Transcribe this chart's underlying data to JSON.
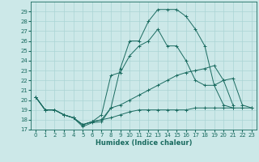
{
  "xlabel": "Humidex (Indice chaleur)",
  "bg_color": "#cce8e8",
  "grid_color": "#aad4d4",
  "line_color": "#1a6b60",
  "xlim": [
    -0.5,
    23.5
  ],
  "ylim": [
    17,
    30
  ],
  "xticks": [
    0,
    1,
    2,
    3,
    4,
    5,
    6,
    7,
    8,
    9,
    10,
    11,
    12,
    13,
    14,
    15,
    16,
    17,
    18,
    19,
    20,
    21,
    22,
    23
  ],
  "yticks": [
    17,
    18,
    19,
    20,
    21,
    22,
    23,
    24,
    25,
    26,
    27,
    28,
    29
  ],
  "lines": [
    {
      "x": [
        0,
        1,
        2,
        3,
        4,
        5,
        6,
        7,
        8,
        9,
        10,
        11,
        12,
        13,
        14,
        15,
        16,
        17,
        18,
        19,
        20,
        21
      ],
      "y": [
        20.3,
        19.0,
        19.0,
        18.5,
        18.2,
        17.3,
        17.7,
        17.8,
        19.2,
        23.2,
        26.0,
        26.0,
        28.0,
        29.2,
        29.2,
        29.2,
        28.5,
        27.2,
        25.5,
        21.5,
        19.5,
        19.2
      ]
    },
    {
      "x": [
        0,
        1,
        2,
        3,
        4,
        5,
        6,
        7,
        8,
        9,
        10,
        11,
        12,
        13,
        14,
        15,
        16,
        17,
        18,
        19,
        20,
        21
      ],
      "y": [
        20.3,
        19.0,
        19.0,
        18.5,
        18.2,
        17.5,
        17.8,
        18.5,
        22.5,
        22.8,
        24.5,
        25.5,
        26.0,
        27.2,
        25.5,
        25.5,
        24.0,
        22.0,
        21.5,
        21.5,
        22.0,
        19.5
      ]
    },
    {
      "x": [
        0,
        1,
        2,
        3,
        4,
        5,
        6,
        7,
        8,
        9,
        10,
        11,
        12,
        13,
        14,
        15,
        16,
        17,
        18,
        19,
        20,
        21,
        22,
        23
      ],
      "y": [
        20.3,
        19.0,
        19.0,
        18.5,
        18.2,
        17.5,
        17.8,
        18.0,
        19.2,
        19.5,
        20.0,
        20.5,
        21.0,
        21.5,
        22.0,
        22.5,
        22.8,
        23.0,
        23.2,
        23.5,
        22.0,
        22.2,
        19.5,
        19.2
      ]
    },
    {
      "x": [
        0,
        1,
        2,
        3,
        4,
        5,
        6,
        7,
        8,
        9,
        10,
        11,
        12,
        13,
        14,
        15,
        16,
        17,
        18,
        19,
        20,
        21,
        22,
        23
      ],
      "y": [
        20.3,
        19.0,
        19.0,
        18.5,
        18.2,
        17.5,
        17.8,
        18.0,
        18.2,
        18.5,
        18.8,
        19.0,
        19.0,
        19.0,
        19.0,
        19.0,
        19.0,
        19.2,
        19.2,
        19.2,
        19.2,
        19.2,
        19.2,
        19.2
      ]
    }
  ]
}
